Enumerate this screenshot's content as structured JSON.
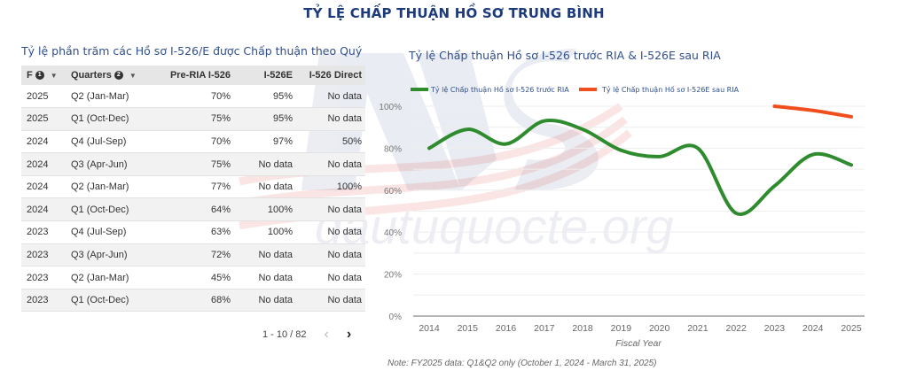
{
  "header": {
    "title": "TỶ LỆ CHẤP THUẬN HỒ SƠ TRUNG BÌNH"
  },
  "watermark": {
    "logo": "NVS",
    "text": "dautuquocte.org"
  },
  "table": {
    "title": "Tỷ lệ phần trăm các Hồ sơ I-526/E được Chấp thuận theo Quý",
    "columns": [
      {
        "label": "F",
        "badge": "1",
        "sortable": true
      },
      {
        "label": "Quarters",
        "badge": "2",
        "sortable": true
      },
      {
        "label": "Pre-RIA I-526"
      },
      {
        "label": "I-526E"
      },
      {
        "label": "I-526 Direct"
      }
    ],
    "rows": [
      [
        "2025",
        "Q2 (Jan-Mar)",
        "70%",
        "95%",
        "No data"
      ],
      [
        "2025",
        "Q1 (Oct-Dec)",
        "75%",
        "95%",
        "No data"
      ],
      [
        "2024",
        "Q4 (Jul-Sep)",
        "70%",
        "97%",
        "50%"
      ],
      [
        "2024",
        "Q3 (Apr-Jun)",
        "75%",
        "No data",
        "No data"
      ],
      [
        "2024",
        "Q2 (Jan-Mar)",
        "77%",
        "No data",
        "100%"
      ],
      [
        "2024",
        "Q1 (Oct-Dec)",
        "64%",
        "100%",
        "No data"
      ],
      [
        "2023",
        "Q4 (Jul-Sep)",
        "63%",
        "100%",
        "No data"
      ],
      [
        "2023",
        "Q3 (Apr-Jun)",
        "72%",
        "No data",
        "No data"
      ],
      [
        "2023",
        "Q2 (Jan-Mar)",
        "45%",
        "No data",
        "No data"
      ],
      [
        "2023",
        "Q1 (Oct-Dec)",
        "68%",
        "No data",
        "No data"
      ]
    ],
    "pagination": {
      "range": "1 - 10 / 82",
      "prev": "‹",
      "next": "›"
    }
  },
  "chart_data": {
    "type": "line",
    "title": "Tỷ lệ Chấp thuận Hồ sơ I-526 trước RIA & I-526E sau RIA",
    "xlabel": "Fiscal Year",
    "ylabel": "",
    "categories": [
      "2014",
      "2015",
      "2016",
      "2017",
      "2018",
      "2019",
      "2020",
      "2021",
      "2022",
      "2023",
      "2024",
      "2025"
    ],
    "series": [
      {
        "name": "Tỷ lệ Chấp thuận Hồ sơ I-526 trước RIA",
        "color": "#2e8b2e",
        "values": [
          80,
          89,
          82,
          93,
          89,
          79,
          76,
          80,
          49,
          62,
          77,
          72
        ]
      },
      {
        "name": "Tỷ lệ Chấp thuận Hồ sơ I-526E sau RIA",
        "color": "#f04e1c",
        "values": [
          null,
          null,
          null,
          null,
          null,
          null,
          null,
          null,
          null,
          100,
          98,
          95
        ]
      }
    ],
    "yticks": [
      "0%",
      "20%",
      "40%",
      "60%",
      "80%",
      "100%"
    ],
    "ylim": [
      0,
      100
    ],
    "grid": true,
    "legend_position": "top",
    "note": "Note: FY2025 data: Q1&Q2 only (October 1, 2024 - March 31, 2025)"
  }
}
